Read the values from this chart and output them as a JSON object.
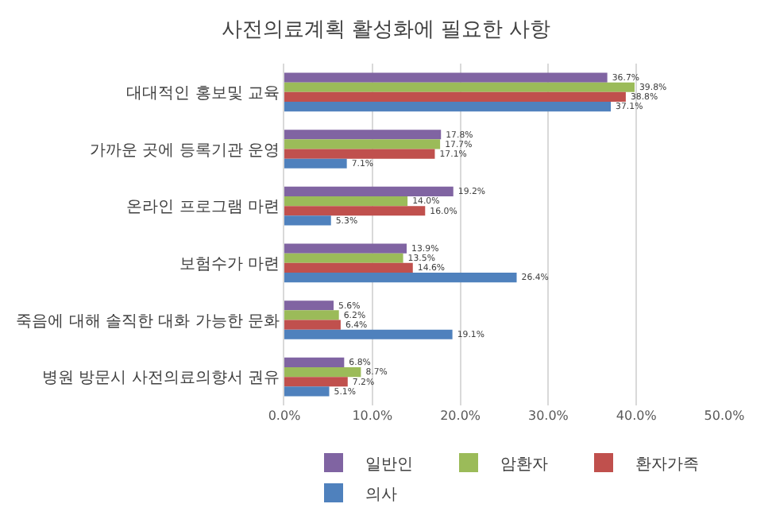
{
  "chart_data": {
    "type": "bar",
    "orientation": "horizontal",
    "title": "사전의료계획 활성화에 필요한 사항",
    "categories": [
      "대대적인 홍보및 교육",
      "가까운 곳에 등록기관 운영",
      "온라인 프로그램 마련",
      "보험수가 마련",
      "죽음에 대해 솔직한 대화 가능한 문화",
      "병원 방문시 사전의료의향서 권유"
    ],
    "series": [
      {
        "name": "일반인",
        "color": "#8064a2",
        "values": [
          36.7,
          17.8,
          19.2,
          13.9,
          5.6,
          6.8
        ],
        "value_labels": [
          "36.7%",
          "17.8%",
          "19.2%",
          "13.9%",
          "5.6%",
          "6.8%"
        ]
      },
      {
        "name": "암환자",
        "color": "#9bbb59",
        "values": [
          39.8,
          17.7,
          14.0,
          13.5,
          6.2,
          8.7
        ],
        "value_labels": [
          "39.8%",
          "17.7%",
          "14.0%",
          "13.5%",
          "6.2%",
          "8.7%"
        ]
      },
      {
        "name": "환자가족",
        "color": "#c0504d",
        "values": [
          38.8,
          17.1,
          16.0,
          14.6,
          6.4,
          7.2
        ],
        "value_labels": [
          "38.8%",
          "17.1%",
          "16.0%",
          "14.6%",
          "6.4%",
          "7.2%"
        ]
      },
      {
        "name": "의사",
        "color": "#4f81bd",
        "values": [
          37.1,
          7.1,
          5.3,
          26.4,
          19.1,
          5.1
        ],
        "value_labels": [
          "37.1%",
          "7.1%",
          "5.3%",
          "26.4%",
          "19.1%",
          "5.1%"
        ]
      }
    ],
    "xlim": [
      0,
      50
    ],
    "xticks": [
      {
        "value": 0,
        "label": "0.0%"
      },
      {
        "value": 10,
        "label": "10.0%"
      },
      {
        "value": 20,
        "label": "20.0%"
      },
      {
        "value": 30,
        "label": "30.0%"
      },
      {
        "value": 40,
        "label": "40.0%"
      },
      {
        "value": 50,
        "label": "50.0%"
      }
    ],
    "grid": "x",
    "legend": "bottom"
  }
}
